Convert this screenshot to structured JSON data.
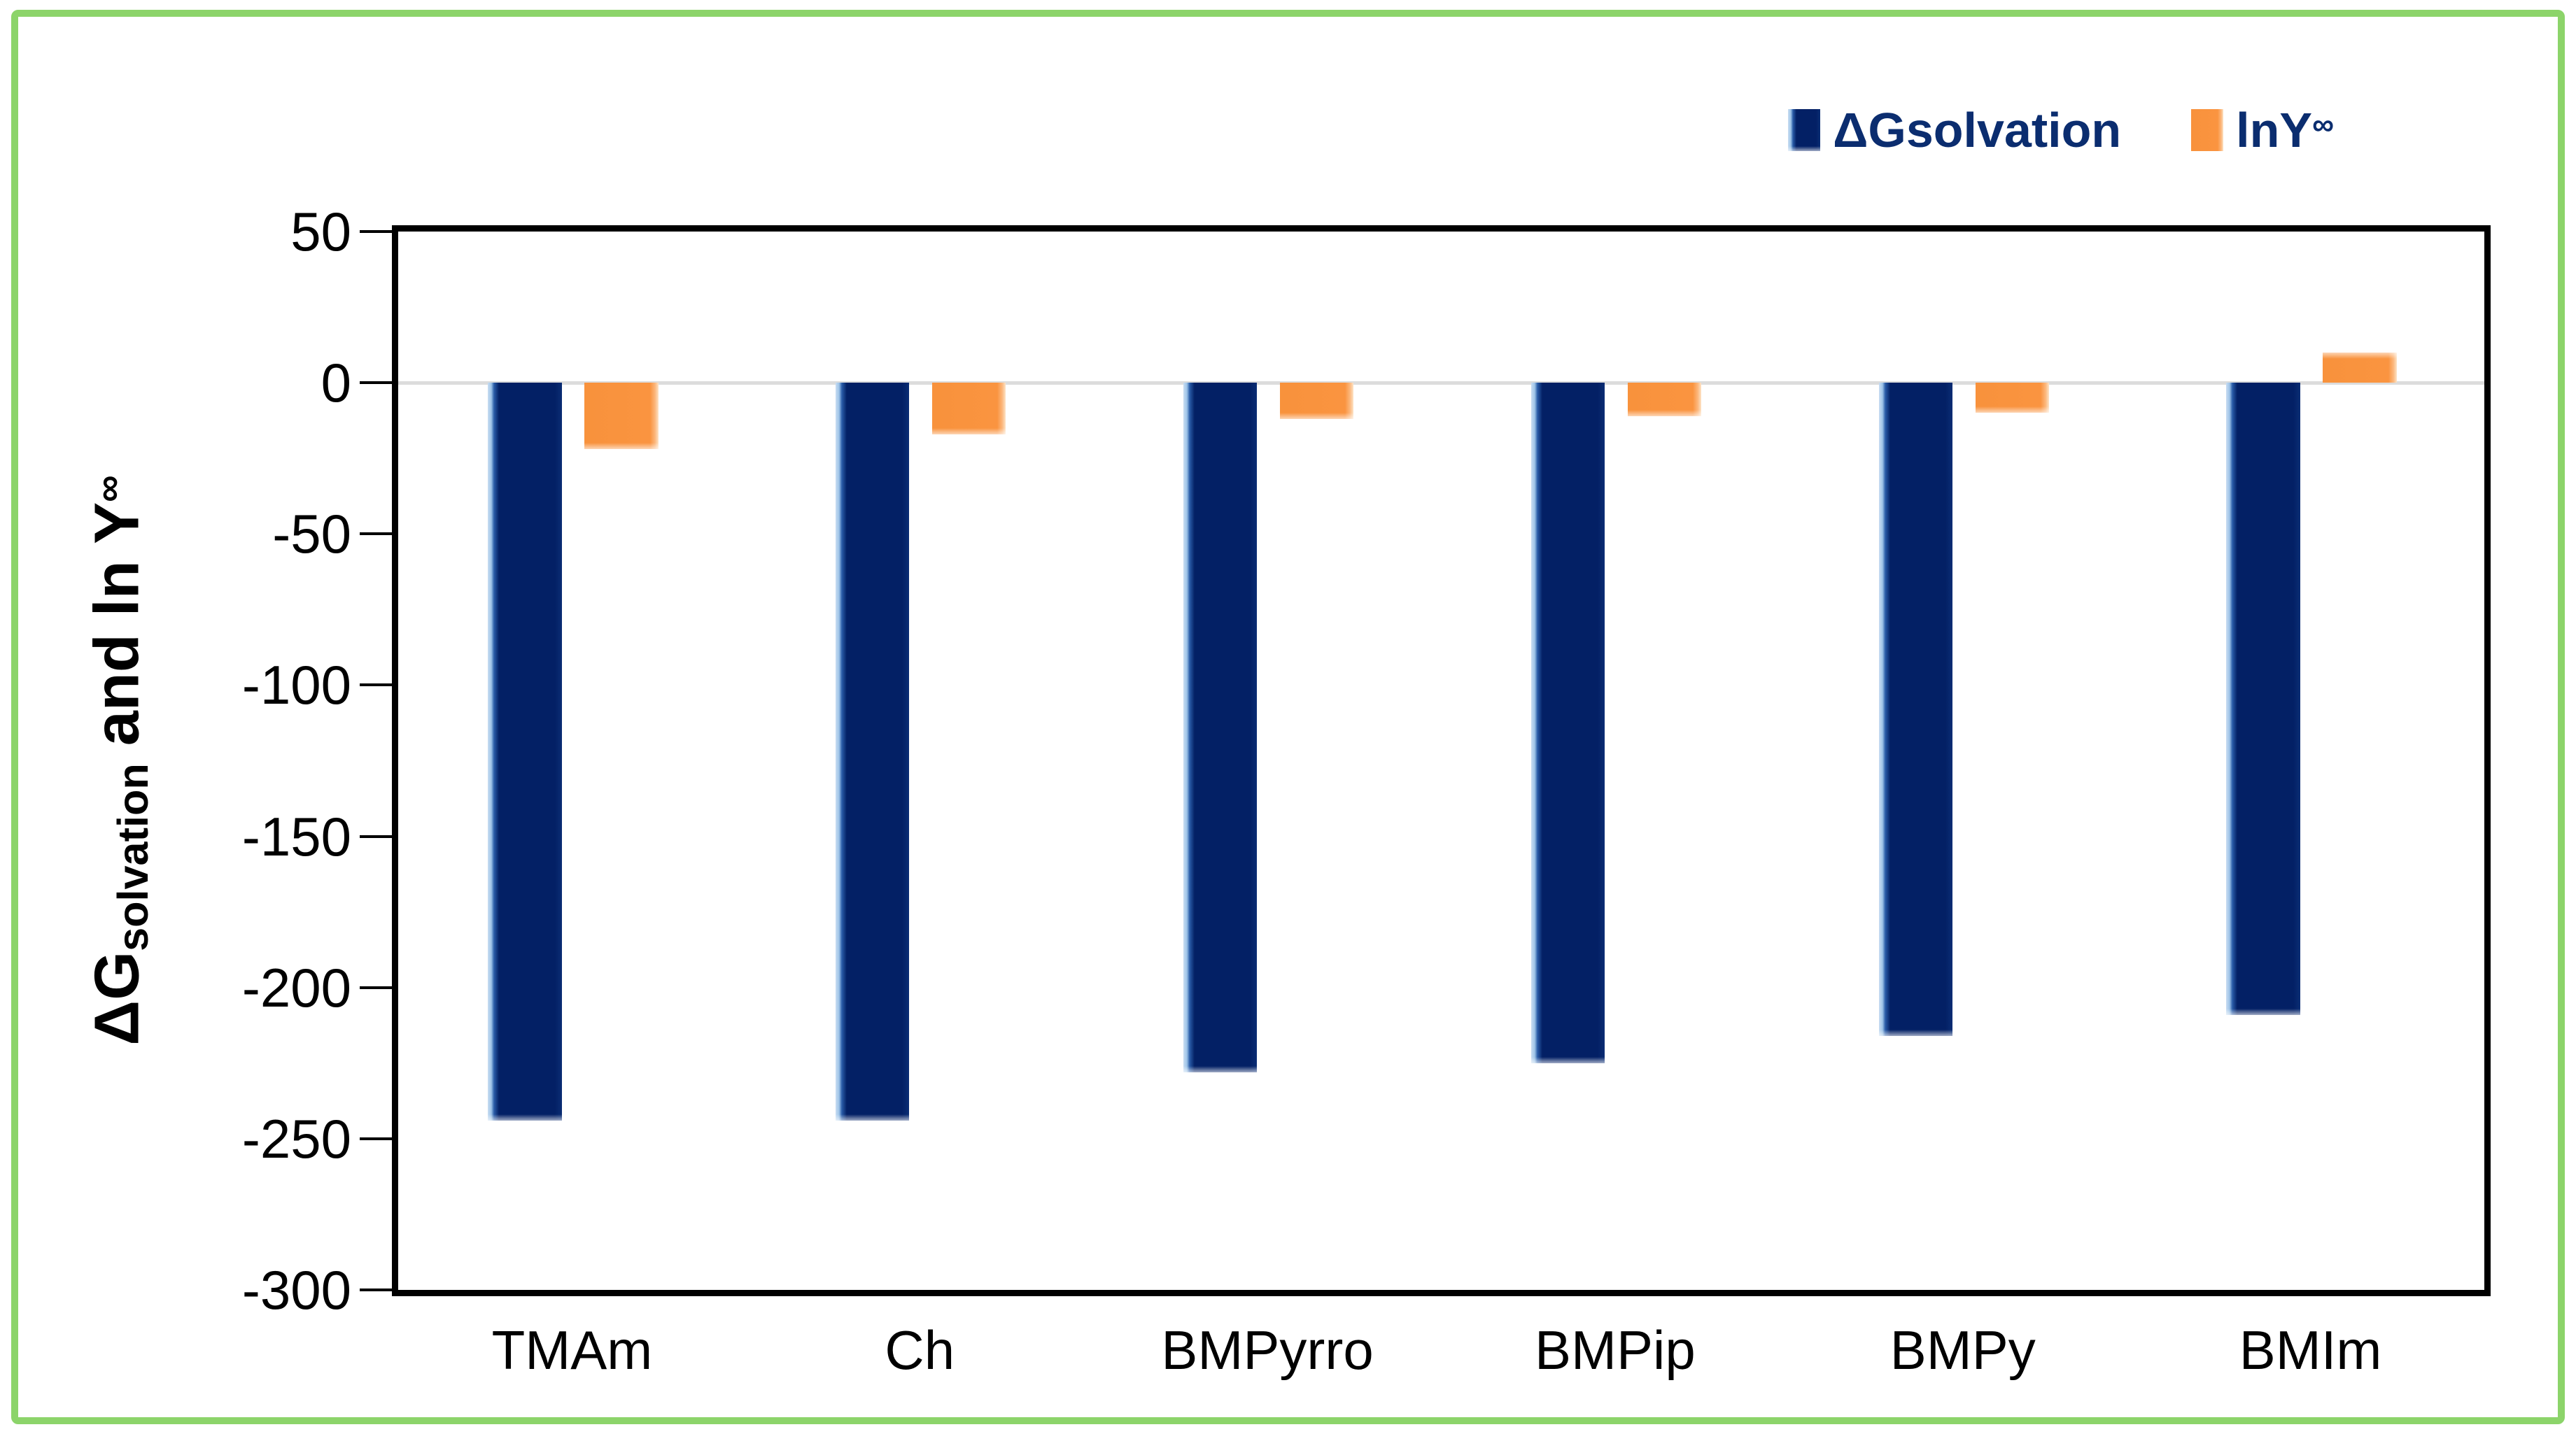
{
  "chart_data": {
    "type": "bar",
    "title": "",
    "categories": [
      "TMAm",
      "Ch",
      "BMPyrro",
      "BMPip",
      "BMPy",
      "BMIm"
    ],
    "series": [
      {
        "name": "ΔGsolvation",
        "color": "#032065",
        "values": [
          -244,
          -244,
          -228,
          -225,
          -216,
          -209
        ]
      },
      {
        "name": "lnY∞",
        "color": "#FA9440",
        "values": [
          -22,
          -17,
          -12,
          -11,
          -10,
          10
        ]
      }
    ],
    "ylim": [
      -300,
      50
    ],
    "yticks": [
      50,
      0,
      -50,
      -100,
      -150,
      -200,
      -250,
      -300
    ],
    "ytick_step": 50,
    "xlabel": "",
    "ylabel": "ΔGsolvation and ln Y∞",
    "ylabel_parts": {
      "main_prefix": "ΔG",
      "subscript": "solvation",
      "middle": " and ln Y",
      "superscript": "∞"
    },
    "grid": "zero-line-only",
    "legend_position": "top-right",
    "legend": {
      "items": [
        {
          "label": "ΔGsolvation",
          "sup": "",
          "swatch": "navy"
        },
        {
          "label": "lnY",
          "sup": "∞",
          "swatch": "orange"
        }
      ]
    }
  },
  "colors": {
    "navy_bar": "#032065",
    "navy_bar_edge": "#9EC4E8",
    "orange_bar": "#FA9440",
    "orange_bar_edge": "#FDE3C6",
    "frame_green": "#8CD46A",
    "zero_gridline": "#DCDCDC",
    "axis": "#000000",
    "legend_text": "#0B2D6F"
  }
}
